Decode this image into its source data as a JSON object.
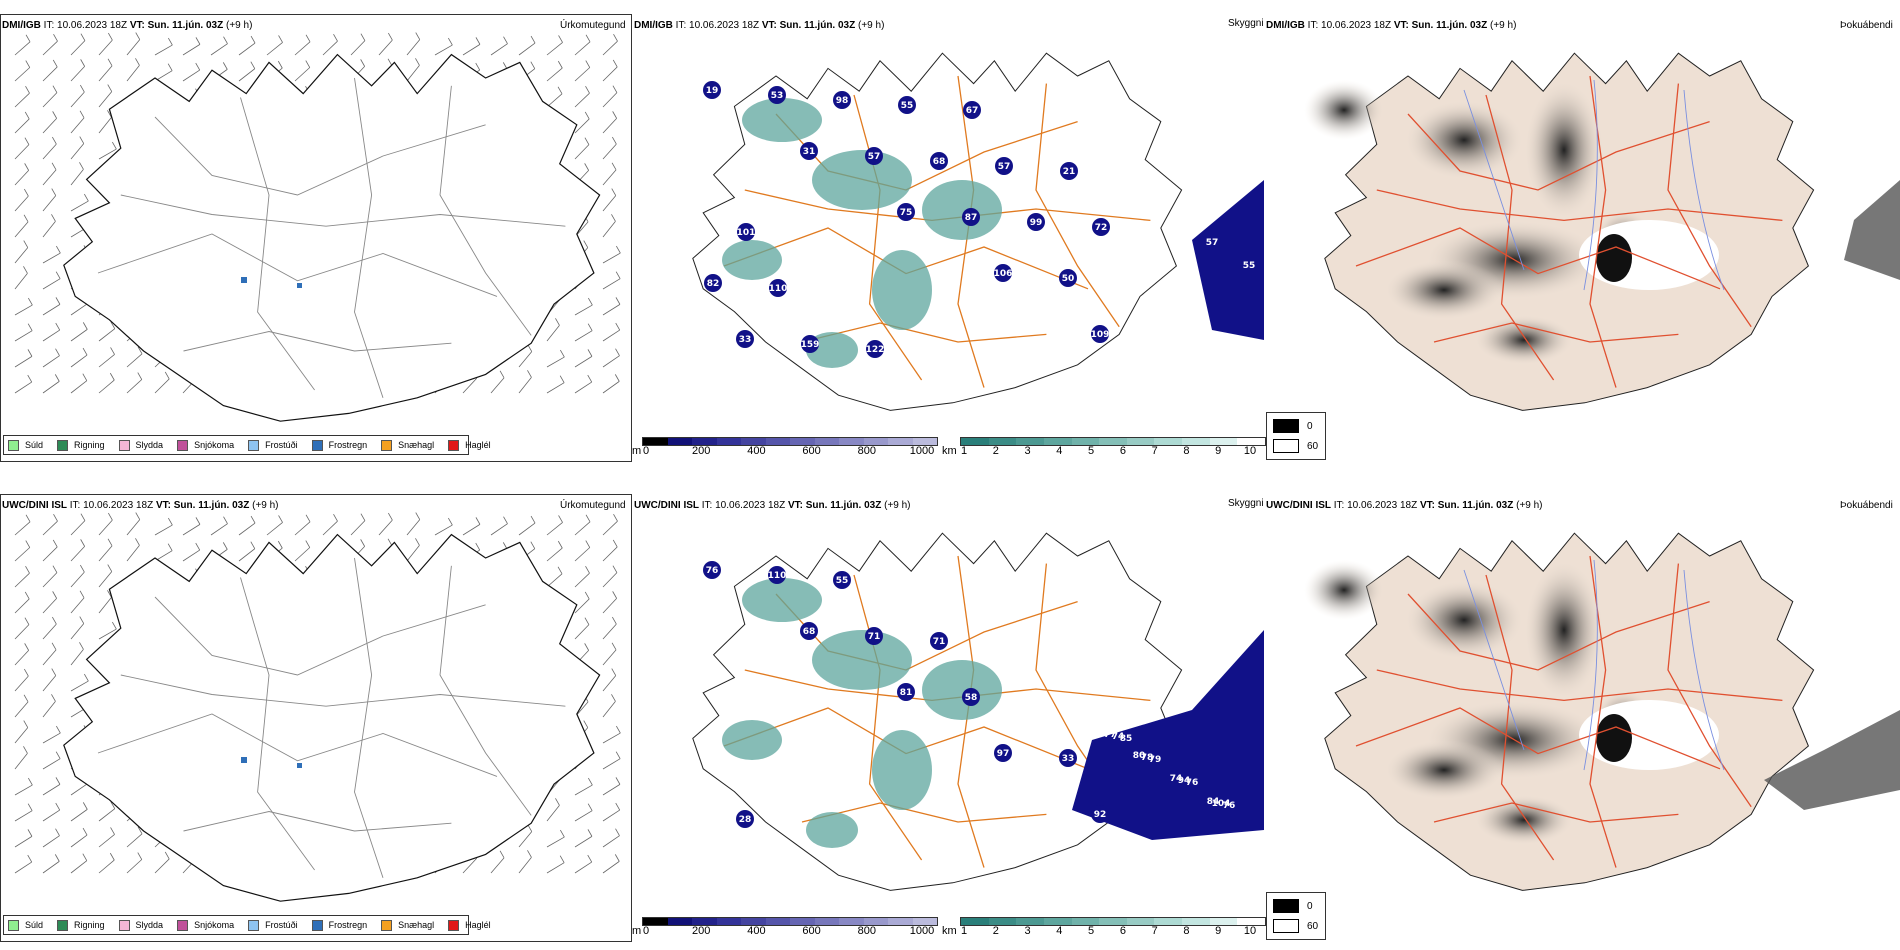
{
  "rows": [
    {
      "model_label": "DMI/IGB",
      "it_label": "IT:",
      "it_value": "10.06.2023 18Z",
      "vt_label": "VT:",
      "vt_value": "Sun. 11.jún. 03Z",
      "lead": "(+9 h)",
      "visibility_values": [
        "19",
        "31",
        "75",
        "106",
        "109",
        "53",
        "57",
        "87",
        "50",
        "33",
        "98",
        "68",
        "99",
        "82",
        "159",
        "55",
        "57",
        "72",
        "110",
        "122",
        "67",
        "21",
        "101"
      ],
      "ocean_values": [
        "57",
        "55"
      ]
    },
    {
      "model_label": "UWC/DINI ISL",
      "it_label": "IT:",
      "it_value": "10.06.2023 18Z",
      "vt_label": "VT:",
      "vt_value": "Sun. 11.jún. 03Z",
      "lead": "(+9 h)",
      "visibility_values": [
        "76",
        "68",
        "81",
        "97",
        "92",
        "110",
        "71",
        "58",
        "33",
        "28",
        "55",
        "71"
      ],
      "ocean_values": [
        "80",
        "80",
        "74",
        "84",
        "77",
        "78",
        "94",
        "104",
        "74",
        "79",
        "76",
        "76",
        "85"
      ]
    }
  ],
  "panel_titles": {
    "precip": "Úrkomutegund",
    "visibility": "Skyggni",
    "fog": "Þokuábendi"
  },
  "precip_legend": [
    {
      "label": "Súld",
      "color": "#90ee90"
    },
    {
      "label": "Rigning",
      "color": "#2e8b57"
    },
    {
      "label": "Slydda",
      "color": "#f4b6d6"
    },
    {
      "label": "Snjókoma",
      "color": "#c0509a"
    },
    {
      "label": "Frostúði",
      "color": "#8ec3f0"
    },
    {
      "label": "Frostregn",
      "color": "#2f6fb8"
    },
    {
      "label": "Snæhagl",
      "color": "#f5a020"
    },
    {
      "label": "Haglél",
      "color": "#e01818"
    }
  ],
  "visibility_m_bar": {
    "unit": "m",
    "ticks": [
      "0",
      "200",
      "400",
      "600",
      "800",
      "1000"
    ],
    "colors": [
      "#000000",
      "#111177",
      "#22228a",
      "#333399",
      "#4444a0",
      "#5555aa",
      "#6666b3",
      "#7777bb",
      "#8888c4",
      "#9999cc",
      "#aaaad5",
      "#bbbbdd"
    ]
  },
  "visibility_km_bar": {
    "unit": "km",
    "ticks": [
      "1",
      "2",
      "3",
      "4",
      "5",
      "6",
      "7",
      "8",
      "9",
      "10"
    ],
    "colors": [
      "#2a7f7a",
      "#3b8c86",
      "#4c9992",
      "#5ea69e",
      "#70b2aa",
      "#84bfb7",
      "#98cbc4",
      "#addad3",
      "#c3e6e1",
      "#dcf1ee",
      "#ffffff"
    ]
  },
  "fog_legend": [
    {
      "label": "0",
      "color": "#000000"
    },
    {
      "label": "60",
      "color": "#ffffff"
    }
  ]
}
